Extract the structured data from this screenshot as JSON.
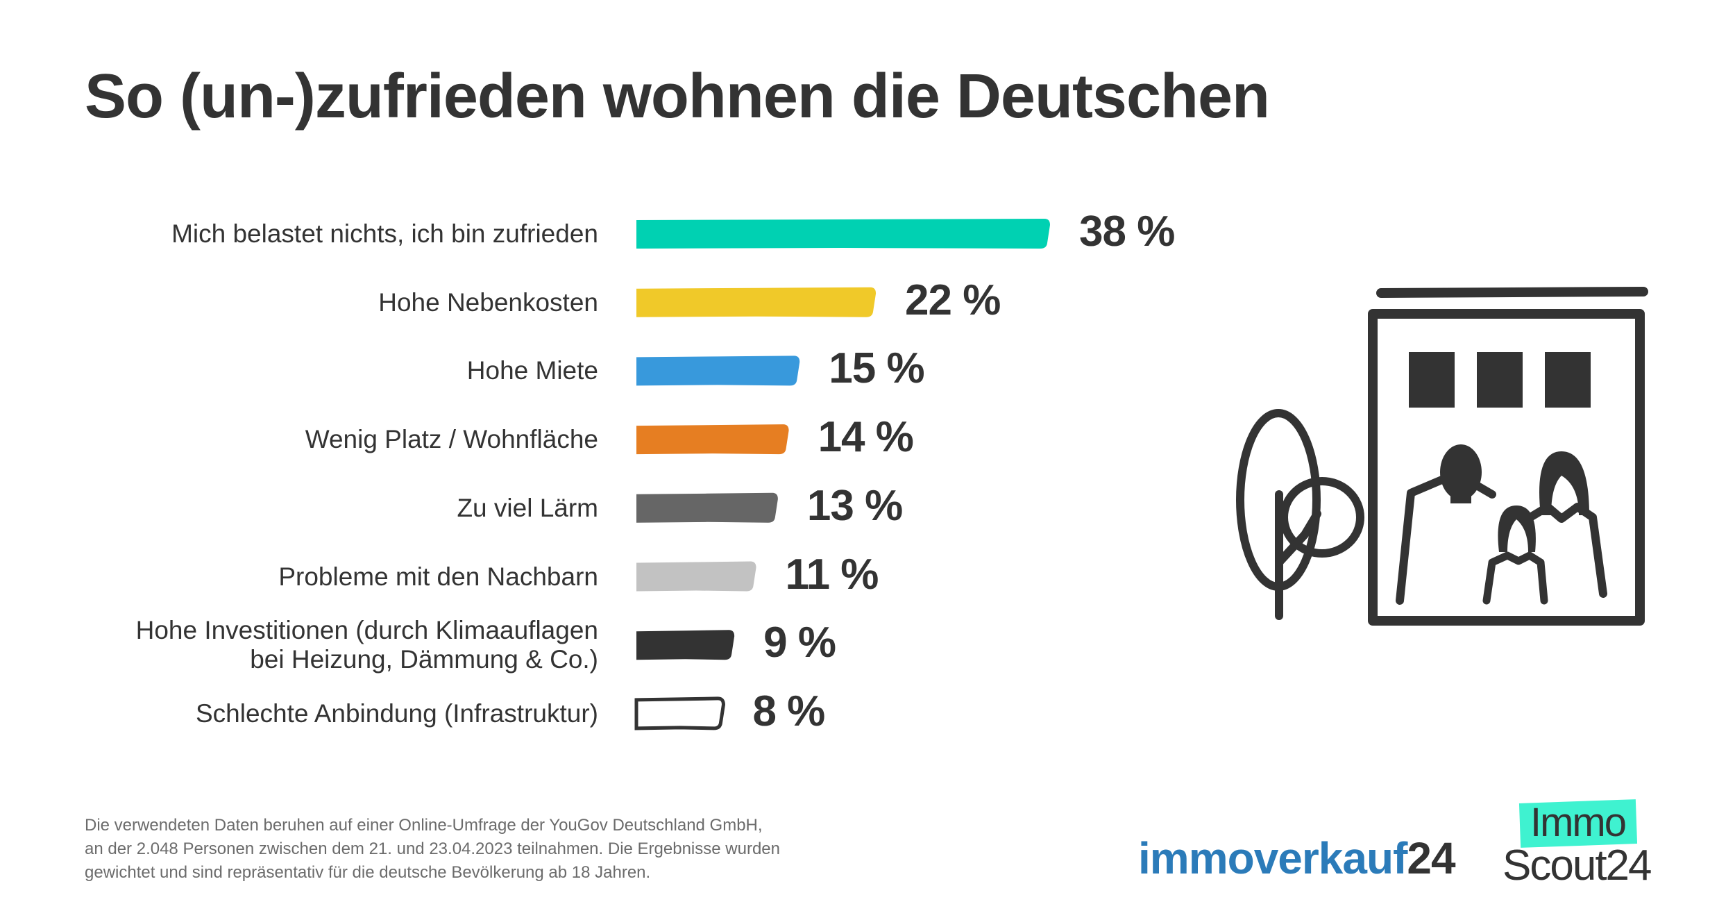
{
  "title": "So (un-)zufrieden wohnen die Deutschen",
  "chart_data": {
    "type": "bar",
    "orientation": "horizontal",
    "title": "So (un-)zufrieden wohnen die Deutschen",
    "xlabel": "",
    "ylabel": "",
    "unit": "%",
    "xlim": [
      0,
      38
    ],
    "grid": false,
    "legend": "none",
    "categories": [
      [
        "Mich belastet nichts, ich bin zufrieden"
      ],
      [
        "Hohe Nebenkosten"
      ],
      [
        "Hohe Miete"
      ],
      [
        "Wenig Platz / Wohnfläche"
      ],
      [
        "Zu viel Lärm"
      ],
      [
        "Probleme mit den Nachbarn"
      ],
      [
        "Hohe Investitionen (durch Klimaauflagen",
        "bei Heizung, Dämmung & Co.)"
      ],
      [
        "Schlechte Anbindung (Infrastruktur)"
      ]
    ],
    "values": [
      38,
      22,
      15,
      14,
      13,
      11,
      9,
      8
    ],
    "value_labels": [
      "38 %",
      "22 %",
      "15 %",
      "14 %",
      "13 %",
      "11 %",
      "9 %",
      "8 %"
    ],
    "colors": [
      "#00d1b2",
      "#f0c929",
      "#3899dc",
      "#e67e22",
      "#666666",
      "#c2c2c2",
      "#333333",
      "#ffffff"
    ],
    "outline_color": "#333333"
  },
  "footer": {
    "lines": [
      "Die verwendeten Daten beruhen auf einer Online-Umfrage der YouGov Deutschland GmbH,",
      "an der 2.048 Personen zwischen dem 21. und 23.04.2023 teilnahmen. Die Ergebnisse wurden",
      "gewichtet und sind repräsentativ für die deutsche Bevölkerung ab 18 Jahren."
    ]
  },
  "logos": {
    "immoverkauf": {
      "part1": "immoverkauf",
      "part2": "24",
      "color": "#2b7bb9"
    },
    "immoscout": {
      "top": "Immo",
      "bottom": "Scout24",
      "accent": "#3ff2d0"
    }
  },
  "illustration": {
    "icon": "family-house-tree-icon"
  }
}
